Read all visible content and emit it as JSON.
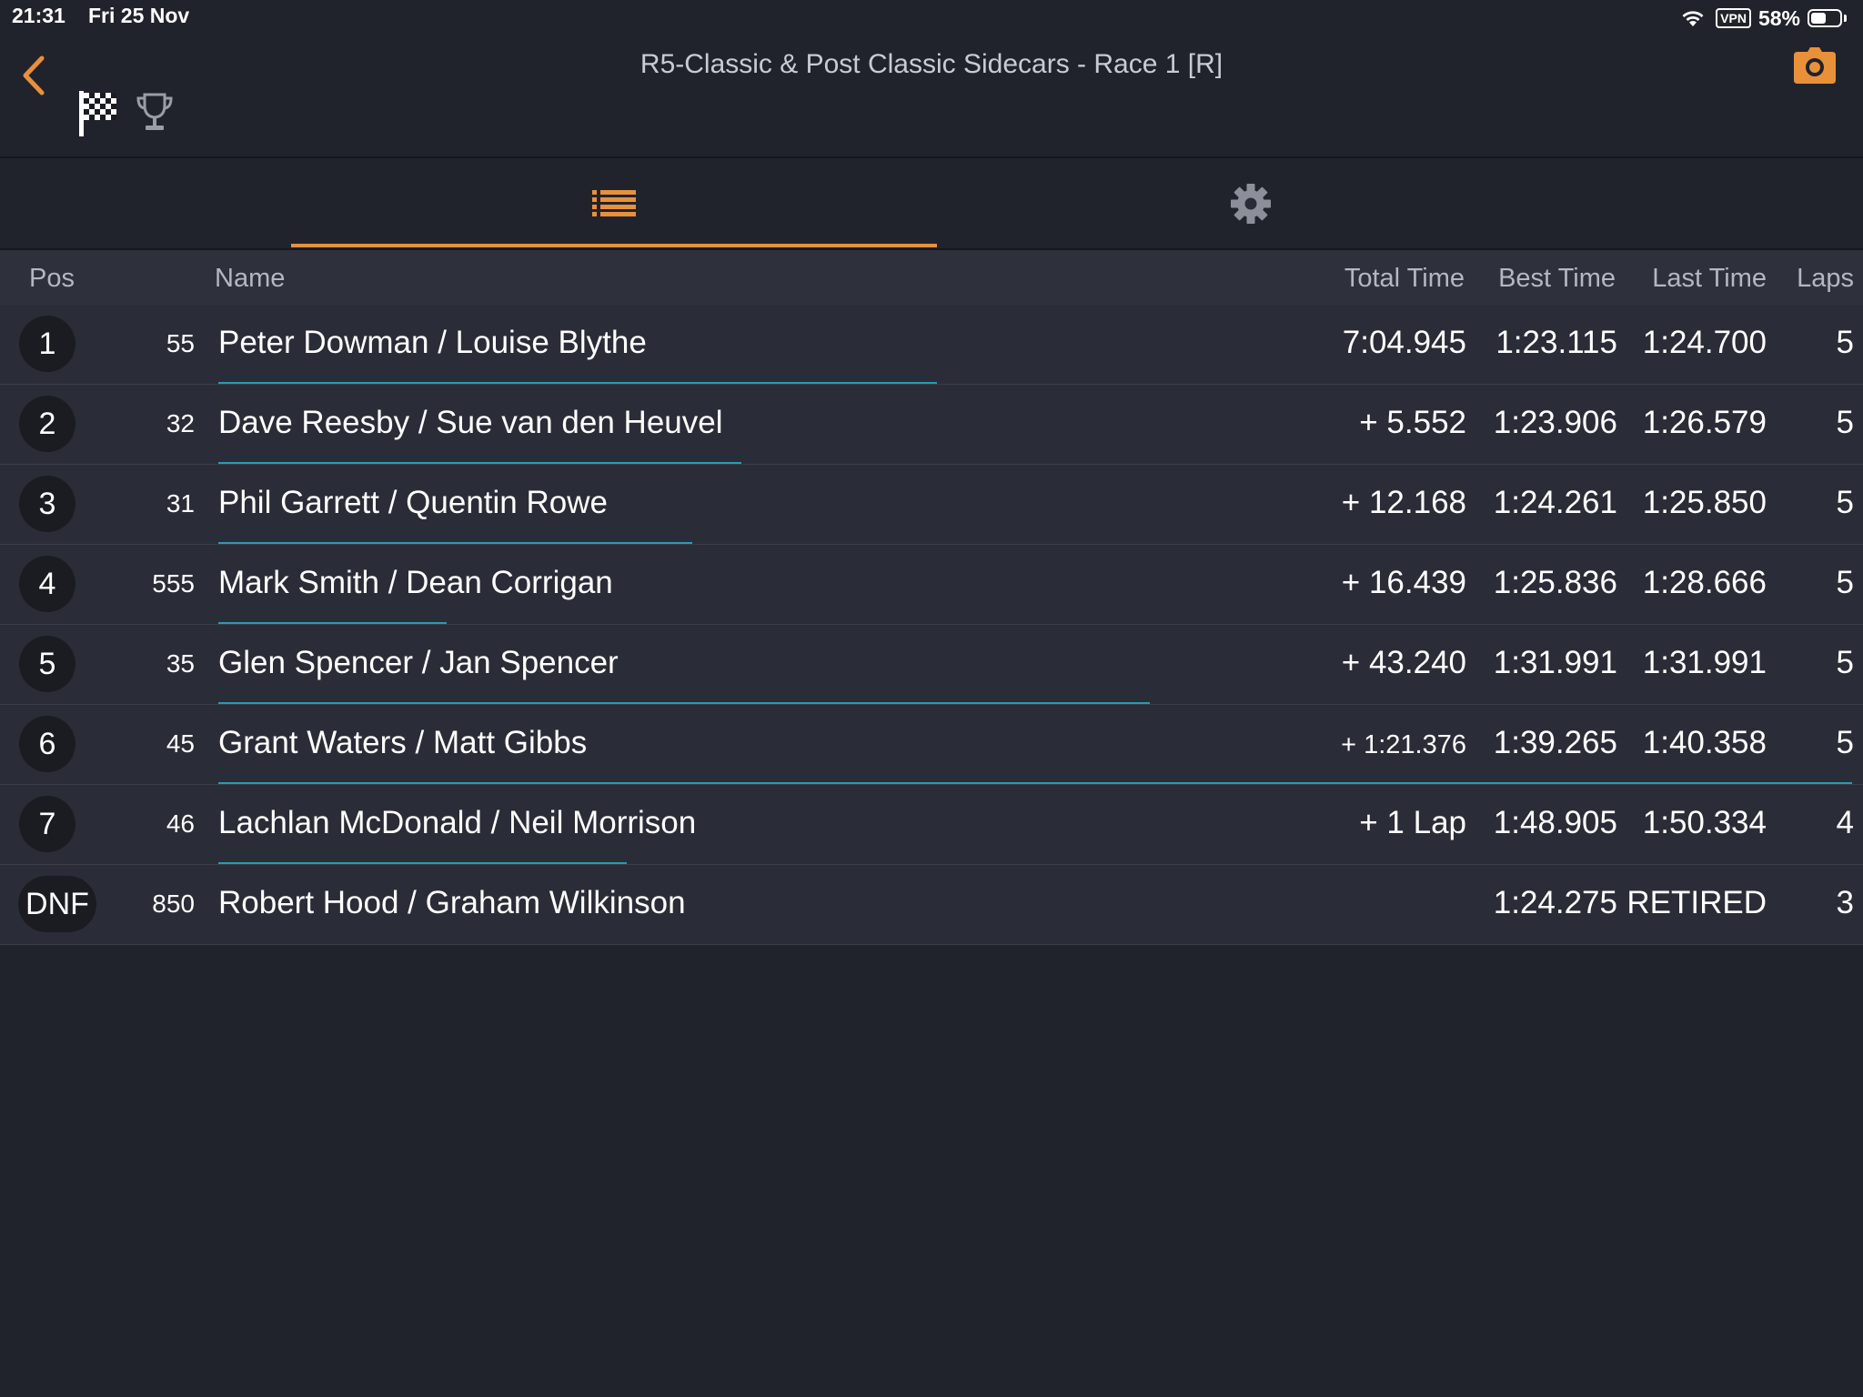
{
  "status": {
    "time": "21:31",
    "date": "Fri 25 Nov",
    "vpn": "VPN",
    "battery": "58%",
    "battery_level": 0.58
  },
  "header": {
    "title": "R5-Classic & Post Classic Sidecars - Race 1 [R]"
  },
  "icons": {
    "back": "chevron-left-icon",
    "camera": "camera-icon",
    "flag": "checkered-flag-icon",
    "trophy": "trophy-icon",
    "list": "list-icon",
    "settings": "gear-icon"
  },
  "colors": {
    "accent": "#e8913a",
    "progress": "#1f9fb8",
    "background": "#21232c",
    "row": "#2a2d37"
  },
  "columns": {
    "pos": "Pos",
    "name": "Name",
    "total": "Total Time",
    "best": "Best Time",
    "last": "Last Time",
    "laps": "Laps"
  },
  "results": [
    {
      "pos": "1",
      "num": "55",
      "name": "Peter Dowman / Louise Blythe",
      "total": "7:04.945",
      "best": "1:23.115",
      "last": "1:24.700",
      "laps": "5",
      "progress": 0.44
    },
    {
      "pos": "2",
      "num": "32",
      "name": "Dave Reesby / Sue van den Heuvel",
      "total": "+ 5.552",
      "best": "1:23.906",
      "last": "1:26.579",
      "laps": "5",
      "progress": 0.32
    },
    {
      "pos": "3",
      "num": "31",
      "name": "Phil Garrett / Quentin Rowe",
      "total": "+ 12.168",
      "best": "1:24.261",
      "last": "1:25.850",
      "laps": "5",
      "progress": 0.29
    },
    {
      "pos": "4",
      "num": "555",
      "name": "Mark Smith / Dean Corrigan",
      "total": "+ 16.439",
      "best": "1:25.836",
      "last": "1:28.666",
      "laps": "5",
      "progress": 0.14
    },
    {
      "pos": "5",
      "num": "35",
      "name": "Glen Spencer / Jan Spencer",
      "total": "+ 43.240",
      "best": "1:31.991",
      "last": "1:31.991",
      "laps": "5",
      "progress": 0.57
    },
    {
      "pos": "6",
      "num": "45",
      "name": "Grant Waters / Matt Gibbs",
      "total": "+ 1:21.376",
      "best": "1:39.265",
      "last": "1:40.358",
      "laps": "5",
      "progress": 1.0
    },
    {
      "pos": "7",
      "num": "46",
      "name": "Lachlan McDonald / Neil Morrison",
      "total": "+ 1 Lap",
      "best": "1:48.905",
      "last": "1:50.334",
      "laps": "4",
      "progress": 0.25
    },
    {
      "pos": "DNF",
      "num": "850",
      "name": "Robert Hood / Graham Wilkinson",
      "total": "",
      "best": "1:24.275",
      "last": "RETIRED",
      "laps": "3",
      "progress": 0
    }
  ]
}
